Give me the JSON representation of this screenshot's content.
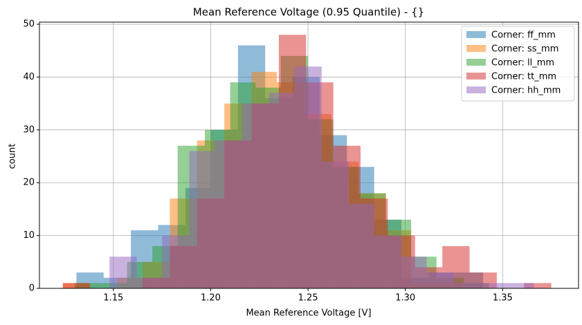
{
  "chart_data": {
    "type": "histogram",
    "title": "Mean Reference Voltage (0.95 Quantile) - {}",
    "x_label": "Mean Reference Voltage [V]",
    "y_label": "count",
    "xlim": [
      1.112,
      1.389
    ],
    "ylim": [
      0,
      50.4
    ],
    "xticks": [
      1.15,
      {
        "value": 1.2,
        "label": "1.20"
      },
      1.25,
      {
        "value": 1.3,
        "label": "1.30"
      },
      1.35
    ],
    "yticks": [
      0,
      10,
      20,
      30,
      40,
      50
    ],
    "grid": true,
    "legend": "upper right",
    "series": [
      {
        "name": "Corner: ff_mm",
        "color": "#1f77b4",
        "bins": [
          1.131,
          1.145,
          1.159,
          1.173,
          1.187,
          1.2,
          1.214,
          1.228,
          1.242,
          1.256,
          1.27,
          1.284,
          1.298,
          1.312,
          1.326,
          1.34
        ],
        "values": [
          3,
          2,
          11,
          12,
          19,
          30,
          46,
          36,
          40,
          29,
          23,
          13,
          2,
          3,
          3
        ]
      },
      {
        "name": "Corner: ss_mm",
        "color": "#ff7f0e",
        "bins": [
          1.124,
          1.138,
          1.152,
          1.165,
          1.179,
          1.193,
          1.207,
          1.221,
          1.234,
          1.248,
          1.262,
          1.276,
          1.29,
          1.303,
          1.317,
          1.331
        ],
        "values": [
          1,
          0,
          2,
          5,
          17,
          28,
          35,
          41,
          39,
          33,
          24,
          18,
          11,
          1,
          1
        ]
      },
      {
        "name": "Corner: ll_mm",
        "color": "#2ca02c",
        "bins": [
          1.13,
          1.143,
          1.157,
          1.17,
          1.183,
          1.197,
          1.21,
          1.223,
          1.236,
          1.25,
          1.263,
          1.276,
          1.29,
          1.303,
          1.316,
          1.33,
          1.343
        ],
        "values": [
          1,
          1,
          5,
          8,
          27,
          30,
          39,
          38,
          44,
          32,
          23,
          18,
          13,
          6,
          2,
          1
        ]
      },
      {
        "name": "Corner: tt_mm",
        "color": "#d62728",
        "bins": [
          1.124,
          1.138,
          1.151,
          1.165,
          1.179,
          1.193,
          1.207,
          1.221,
          1.235,
          1.249,
          1.263,
          1.277,
          1.291,
          1.305,
          1.319,
          1.333,
          1.347,
          1.361,
          1.375
        ],
        "values": [
          1,
          0,
          0,
          2,
          8,
          17,
          28,
          35,
          48,
          39,
          27,
          17,
          10,
          4,
          8,
          3,
          0,
          1
        ]
      },
      {
        "name": "Corner: hh_mm",
        "color": "#9467bd",
        "bins": [
          1.148,
          1.162,
          1.175,
          1.189,
          1.202,
          1.216,
          1.23,
          1.243,
          1.257,
          1.271,
          1.284,
          1.298,
          1.311,
          1.325,
          1.339,
          1.352,
          1.366
        ],
        "values": [
          6,
          2,
          10,
          26,
          28,
          35,
          37,
          42,
          24,
          16,
          10,
          6,
          3,
          1,
          1,
          1
        ]
      }
    ]
  }
}
